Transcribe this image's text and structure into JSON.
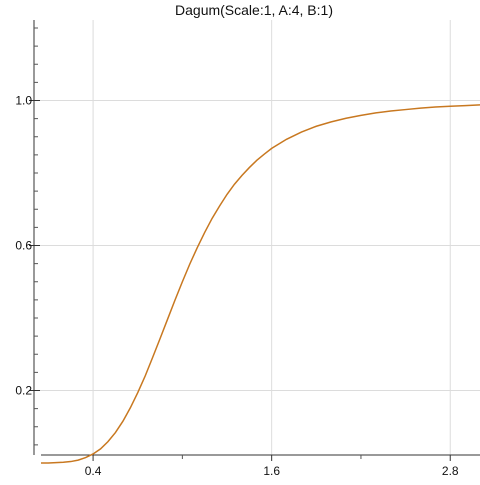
{
  "chart_data": {
    "type": "line",
    "title": "Dagum(Scale:1, A:4, B:1)",
    "xlabel": "",
    "ylabel": "",
    "xlim": [
      0.0,
      3.0
    ],
    "ylim": [
      0.0,
      1.2
    ],
    "x_ticks": [
      0.4,
      1.6,
      2.8
    ],
    "x_tick_labels": [
      "0.4",
      "1.6",
      "2.8"
    ],
    "x_minor_ticks": [
      1.0,
      2.2
    ],
    "y_ticks": [
      0.2,
      0.6,
      1.0
    ],
    "y_tick_labels": [
      "0.2",
      "0.6",
      "1.0"
    ],
    "grid": true,
    "series": [
      {
        "color": "#c87820",
        "x": [
          0.05,
          0.1,
          0.15,
          0.2,
          0.25,
          0.3,
          0.35,
          0.4,
          0.45,
          0.5,
          0.55,
          0.6,
          0.65,
          0.7,
          0.75,
          0.8,
          0.85,
          0.9,
          0.95,
          1.0,
          1.05,
          1.1,
          1.15,
          1.2,
          1.25,
          1.3,
          1.35,
          1.4,
          1.45,
          1.5,
          1.55,
          1.6,
          1.7,
          1.8,
          1.9,
          2.0,
          2.1,
          2.2,
          2.3,
          2.4,
          2.5,
          2.6,
          2.7,
          2.8,
          2.9,
          3.0
        ],
        "y": [
          0.0,
          0.0,
          0.001,
          0.002,
          0.004,
          0.008,
          0.015,
          0.025,
          0.039,
          0.059,
          0.084,
          0.115,
          0.152,
          0.194,
          0.24,
          0.291,
          0.343,
          0.396,
          0.449,
          0.5,
          0.549,
          0.594,
          0.636,
          0.675,
          0.709,
          0.741,
          0.769,
          0.793,
          0.815,
          0.835,
          0.852,
          0.868,
          0.893,
          0.913,
          0.929,
          0.941,
          0.951,
          0.959,
          0.966,
          0.971,
          0.975,
          0.979,
          0.982,
          0.984,
          0.986,
          0.988
        ]
      }
    ]
  }
}
